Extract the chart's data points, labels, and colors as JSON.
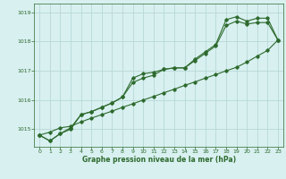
{
  "x": [
    0,
    1,
    2,
    3,
    4,
    5,
    6,
    7,
    8,
    9,
    10,
    11,
    12,
    13,
    14,
    15,
    16,
    17,
    18,
    19,
    20,
    21,
    22,
    23
  ],
  "line1": [
    1014.8,
    1014.6,
    1014.85,
    1015.0,
    1015.5,
    1015.6,
    1015.75,
    1015.9,
    1016.1,
    1016.6,
    1016.75,
    1016.85,
    1017.05,
    1017.1,
    1017.1,
    1017.35,
    1017.6,
    1017.85,
    1018.55,
    1018.7,
    1018.6,
    1018.65,
    1018.65,
    1018.05
  ],
  "line2": [
    1014.8,
    1014.6,
    1014.85,
    1015.05,
    1015.5,
    1015.6,
    1015.75,
    1015.9,
    1016.1,
    1016.75,
    1016.9,
    1016.95,
    1017.05,
    1017.1,
    1017.1,
    1017.4,
    1017.65,
    1017.9,
    1018.75,
    1018.85,
    1018.7,
    1018.8,
    1018.8,
    1018.05
  ],
  "line3": [
    1014.8,
    1014.9,
    1015.05,
    1015.1,
    1015.25,
    1015.38,
    1015.5,
    1015.62,
    1015.75,
    1015.87,
    1016.0,
    1016.12,
    1016.25,
    1016.37,
    1016.5,
    1016.62,
    1016.75,
    1016.87,
    1017.0,
    1017.12,
    1017.3,
    1017.5,
    1017.7,
    1018.05
  ],
  "line_color": "#2d6a2d",
  "bg_color": "#d8f0f0",
  "grid_color": "#b8d8d8",
  "xlabel": "Graphe pression niveau de la mer (hPa)",
  "ylim": [
    1014.4,
    1019.3
  ],
  "yticks": [
    1015,
    1016,
    1017,
    1018,
    1019
  ],
  "xticks": [
    0,
    1,
    2,
    3,
    4,
    5,
    6,
    7,
    8,
    9,
    10,
    11,
    12,
    13,
    14,
    15,
    16,
    17,
    18,
    19,
    20,
    21,
    22,
    23
  ]
}
